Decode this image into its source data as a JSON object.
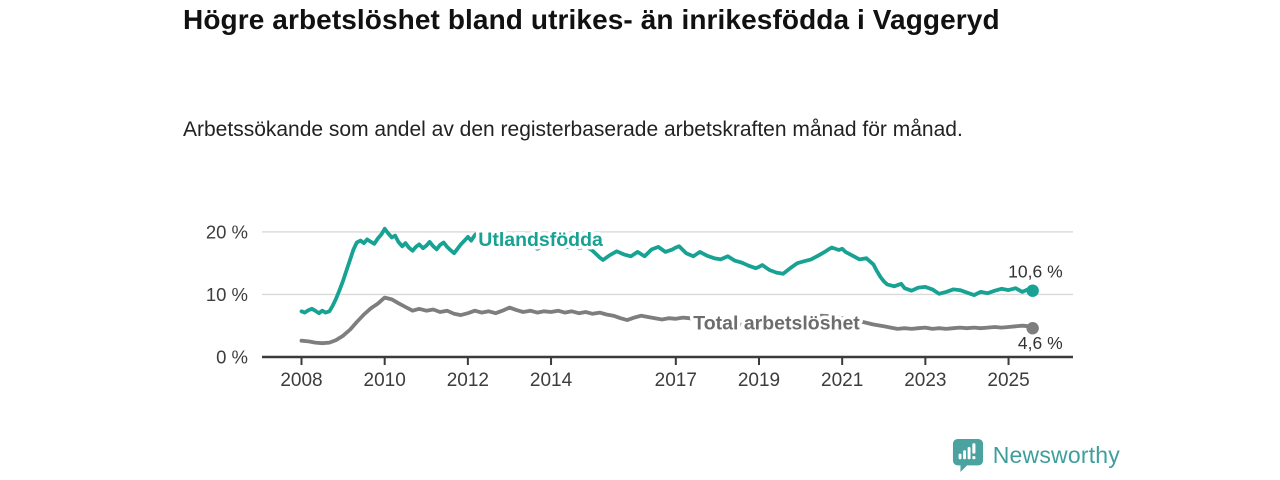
{
  "header": {
    "title": "Högre arbetslöshet bland utrikes- än inrikesfödda i Vaggeryd",
    "subtitle": "Arbetssökande som andel av den registerbaserade arbetskraften månad för månad."
  },
  "chart_data": {
    "type": "line",
    "title": "Högre arbetslöshet bland utrikes- än inrikesfödda i Vaggeryd",
    "unit": "%",
    "grid": "horizontal",
    "legend_position": "inline-labels",
    "x_axis": {
      "ticks": [
        2008,
        2010,
        2012,
        2014,
        2017,
        2019,
        2021,
        2023,
        2025
      ],
      "range": [
        2007.05,
        2026.55
      ]
    },
    "y_axis": {
      "ticks": [
        {
          "value": 0,
          "label": "0 %"
        },
        {
          "value": 10,
          "label": "10 %"
        },
        {
          "value": 20,
          "label": "20 %"
        }
      ],
      "range": [
        0,
        22.7
      ]
    },
    "series": [
      {
        "id": "total",
        "name": "Total arbetslöshet",
        "color": "#7e7e7e",
        "label_color": "#6d6d6d",
        "end_value_label": "4,6 %",
        "value_label_position": "below",
        "label_at": [
          2017.42,
          5.45
        ],
        "points": [
          [
            2008.0,
            2.6
          ],
          [
            2008.17,
            2.5
          ],
          [
            2008.33,
            2.3
          ],
          [
            2008.5,
            2.2
          ],
          [
            2008.67,
            2.3
          ],
          [
            2008.83,
            2.7
          ],
          [
            2009.0,
            3.4
          ],
          [
            2009.17,
            4.4
          ],
          [
            2009.33,
            5.6
          ],
          [
            2009.5,
            6.8
          ],
          [
            2009.67,
            7.8
          ],
          [
            2009.83,
            8.5
          ],
          [
            2010.0,
            9.5
          ],
          [
            2010.17,
            9.2
          ],
          [
            2010.33,
            8.6
          ],
          [
            2010.5,
            8.0
          ],
          [
            2010.67,
            7.4
          ],
          [
            2010.83,
            7.7
          ],
          [
            2011.0,
            7.4
          ],
          [
            2011.17,
            7.6
          ],
          [
            2011.33,
            7.2
          ],
          [
            2011.5,
            7.4
          ],
          [
            2011.67,
            6.9
          ],
          [
            2011.83,
            6.7
          ],
          [
            2012.0,
            7.0
          ],
          [
            2012.17,
            7.4
          ],
          [
            2012.33,
            7.1
          ],
          [
            2012.5,
            7.3
          ],
          [
            2012.67,
            7.0
          ],
          [
            2012.83,
            7.4
          ],
          [
            2013.0,
            7.9
          ],
          [
            2013.17,
            7.5
          ],
          [
            2013.33,
            7.2
          ],
          [
            2013.5,
            7.4
          ],
          [
            2013.67,
            7.1
          ],
          [
            2013.83,
            7.3
          ],
          [
            2014.0,
            7.2
          ],
          [
            2014.17,
            7.4
          ],
          [
            2014.33,
            7.1
          ],
          [
            2014.5,
            7.3
          ],
          [
            2014.67,
            7.0
          ],
          [
            2014.83,
            7.2
          ],
          [
            2015.0,
            6.9
          ],
          [
            2015.17,
            7.1
          ],
          [
            2015.33,
            6.8
          ],
          [
            2015.5,
            6.6
          ],
          [
            2015.67,
            6.2
          ],
          [
            2015.83,
            5.9
          ],
          [
            2016.0,
            6.3
          ],
          [
            2016.17,
            6.6
          ],
          [
            2016.33,
            6.4
          ],
          [
            2016.5,
            6.2
          ],
          [
            2016.67,
            6.0
          ],
          [
            2016.83,
            6.2
          ],
          [
            2017.0,
            6.1
          ],
          [
            2017.17,
            6.3
          ],
          [
            2017.33,
            6.2
          ],
          [
            2017.5,
            6.0
          ],
          [
            2017.67,
            5.8
          ],
          [
            2017.83,
            5.6
          ],
          [
            2018.0,
            5.5
          ],
          [
            2018.25,
            5.4
          ],
          [
            2018.5,
            5.2
          ],
          [
            2018.75,
            5.1
          ],
          [
            2019.0,
            5.2
          ],
          [
            2019.25,
            5.0
          ],
          [
            2019.5,
            4.9
          ],
          [
            2019.75,
            5.1
          ],
          [
            2020.0,
            5.6
          ],
          [
            2020.25,
            6.2
          ],
          [
            2020.5,
            6.6
          ],
          [
            2020.75,
            6.5
          ],
          [
            2021.0,
            6.2
          ],
          [
            2021.25,
            5.9
          ],
          [
            2021.5,
            5.6
          ],
          [
            2021.75,
            5.2
          ],
          [
            2022.0,
            4.9
          ],
          [
            2022.17,
            4.7
          ],
          [
            2022.33,
            4.5
          ],
          [
            2022.5,
            4.6
          ],
          [
            2022.67,
            4.5
          ],
          [
            2022.83,
            4.6
          ],
          [
            2023.0,
            4.7
          ],
          [
            2023.17,
            4.5
          ],
          [
            2023.33,
            4.6
          ],
          [
            2023.5,
            4.5
          ],
          [
            2023.67,
            4.6
          ],
          [
            2023.83,
            4.7
          ],
          [
            2024.0,
            4.6
          ],
          [
            2024.17,
            4.7
          ],
          [
            2024.33,
            4.6
          ],
          [
            2024.5,
            4.7
          ],
          [
            2024.67,
            4.8
          ],
          [
            2024.83,
            4.7
          ],
          [
            2025.0,
            4.8
          ],
          [
            2025.17,
            4.9
          ],
          [
            2025.33,
            5.0
          ],
          [
            2025.5,
            4.9
          ],
          [
            2025.58,
            4.6
          ]
        ]
      },
      {
        "id": "foreign-born",
        "name": "Utlandsfödda",
        "color": "#17a294",
        "label_color": "#17a294",
        "end_value_label": "10,6 %",
        "value_label_position": "above",
        "label_at": [
          2012.25,
          18.75
        ],
        "points": [
          [
            2008.0,
            7.3
          ],
          [
            2008.08,
            7.1
          ],
          [
            2008.17,
            7.5
          ],
          [
            2008.25,
            7.7
          ],
          [
            2008.33,
            7.4
          ],
          [
            2008.42,
            7.0
          ],
          [
            2008.5,
            7.4
          ],
          [
            2008.58,
            7.1
          ],
          [
            2008.67,
            7.3
          ],
          [
            2008.75,
            8.2
          ],
          [
            2008.83,
            9.3
          ],
          [
            2008.92,
            10.8
          ],
          [
            2009.0,
            12.2
          ],
          [
            2009.08,
            13.8
          ],
          [
            2009.17,
            15.6
          ],
          [
            2009.25,
            17.2
          ],
          [
            2009.33,
            18.3
          ],
          [
            2009.42,
            18.6
          ],
          [
            2009.5,
            18.2
          ],
          [
            2009.58,
            18.8
          ],
          [
            2009.67,
            18.4
          ],
          [
            2009.75,
            18.1
          ],
          [
            2009.83,
            18.9
          ],
          [
            2009.92,
            19.6
          ],
          [
            2010.0,
            20.5
          ],
          [
            2010.08,
            19.8
          ],
          [
            2010.17,
            19.1
          ],
          [
            2010.25,
            19.4
          ],
          [
            2010.33,
            18.4
          ],
          [
            2010.42,
            17.7
          ],
          [
            2010.5,
            18.2
          ],
          [
            2010.58,
            17.5
          ],
          [
            2010.67,
            17.0
          ],
          [
            2010.75,
            17.6
          ],
          [
            2010.83,
            18.0
          ],
          [
            2010.92,
            17.4
          ],
          [
            2011.0,
            17.8
          ],
          [
            2011.08,
            18.4
          ],
          [
            2011.17,
            17.7
          ],
          [
            2011.25,
            17.2
          ],
          [
            2011.33,
            17.9
          ],
          [
            2011.42,
            18.3
          ],
          [
            2011.5,
            17.6
          ],
          [
            2011.58,
            17.1
          ],
          [
            2011.67,
            16.6
          ],
          [
            2011.75,
            17.3
          ],
          [
            2011.83,
            18.0
          ],
          [
            2011.92,
            18.6
          ],
          [
            2012.0,
            19.2
          ],
          [
            2012.08,
            18.6
          ],
          [
            2012.17,
            19.5
          ],
          [
            2012.25,
            19.9
          ],
          [
            2012.33,
            19.0
          ],
          [
            2012.42,
            18.4
          ],
          [
            2012.5,
            18.0
          ],
          [
            2012.58,
            18.5
          ],
          [
            2012.67,
            17.9
          ],
          [
            2012.75,
            17.5
          ],
          [
            2012.83,
            18.1
          ],
          [
            2012.92,
            18.6
          ],
          [
            2013.0,
            18.9
          ],
          [
            2013.17,
            18.1
          ],
          [
            2013.33,
            17.7
          ],
          [
            2013.5,
            18.0
          ],
          [
            2013.67,
            17.3
          ],
          [
            2013.83,
            17.9
          ],
          [
            2014.0,
            18.2
          ],
          [
            2014.17,
            17.9
          ],
          [
            2014.33,
            17.5
          ],
          [
            2014.5,
            17.8
          ],
          [
            2014.67,
            17.4
          ],
          [
            2014.83,
            17.7
          ],
          [
            2015.0,
            17.0
          ],
          [
            2015.17,
            15.9
          ],
          [
            2015.25,
            15.5
          ],
          [
            2015.42,
            16.3
          ],
          [
            2015.58,
            16.9
          ],
          [
            2015.75,
            16.4
          ],
          [
            2015.92,
            16.1
          ],
          [
            2016.08,
            16.8
          ],
          [
            2016.25,
            16.1
          ],
          [
            2016.42,
            17.2
          ],
          [
            2016.58,
            17.6
          ],
          [
            2016.75,
            16.8
          ],
          [
            2016.92,
            17.2
          ],
          [
            2017.0,
            17.5
          ],
          [
            2017.08,
            17.7
          ],
          [
            2017.25,
            16.6
          ],
          [
            2017.42,
            16.1
          ],
          [
            2017.58,
            16.8
          ],
          [
            2017.75,
            16.2
          ],
          [
            2017.92,
            15.8
          ],
          [
            2018.08,
            15.6
          ],
          [
            2018.25,
            16.1
          ],
          [
            2018.42,
            15.4
          ],
          [
            2018.58,
            15.1
          ],
          [
            2018.75,
            14.6
          ],
          [
            2018.92,
            14.2
          ],
          [
            2019.0,
            14.4
          ],
          [
            2019.08,
            14.7
          ],
          [
            2019.25,
            13.9
          ],
          [
            2019.42,
            13.5
          ],
          [
            2019.58,
            13.3
          ],
          [
            2019.75,
            14.2
          ],
          [
            2019.92,
            15.0
          ],
          [
            2020.08,
            15.3
          ],
          [
            2020.25,
            15.6
          ],
          [
            2020.42,
            16.2
          ],
          [
            2020.58,
            16.8
          ],
          [
            2020.67,
            17.2
          ],
          [
            2020.75,
            17.5
          ],
          [
            2020.92,
            17.1
          ],
          [
            2021.0,
            17.3
          ],
          [
            2021.08,
            16.8
          ],
          [
            2021.25,
            16.2
          ],
          [
            2021.42,
            15.6
          ],
          [
            2021.58,
            15.8
          ],
          [
            2021.75,
            14.8
          ],
          [
            2021.83,
            13.8
          ],
          [
            2021.92,
            12.8
          ],
          [
            2022.0,
            12.1
          ],
          [
            2022.08,
            11.6
          ],
          [
            2022.25,
            11.3
          ],
          [
            2022.42,
            11.7
          ],
          [
            2022.5,
            11.0
          ],
          [
            2022.67,
            10.6
          ],
          [
            2022.83,
            11.1
          ],
          [
            2023.0,
            11.2
          ],
          [
            2023.17,
            10.8
          ],
          [
            2023.33,
            10.1
          ],
          [
            2023.5,
            10.4
          ],
          [
            2023.67,
            10.8
          ],
          [
            2023.83,
            10.7
          ],
          [
            2024.0,
            10.3
          ],
          [
            2024.17,
            9.9
          ],
          [
            2024.33,
            10.4
          ],
          [
            2024.5,
            10.2
          ],
          [
            2024.67,
            10.6
          ],
          [
            2024.83,
            10.9
          ],
          [
            2025.0,
            10.7
          ],
          [
            2025.17,
            11.0
          ],
          [
            2025.33,
            10.4
          ],
          [
            2025.5,
            10.9
          ],
          [
            2025.58,
            10.6
          ]
        ]
      }
    ]
  },
  "footer": {
    "brand": "Newsworthy"
  }
}
